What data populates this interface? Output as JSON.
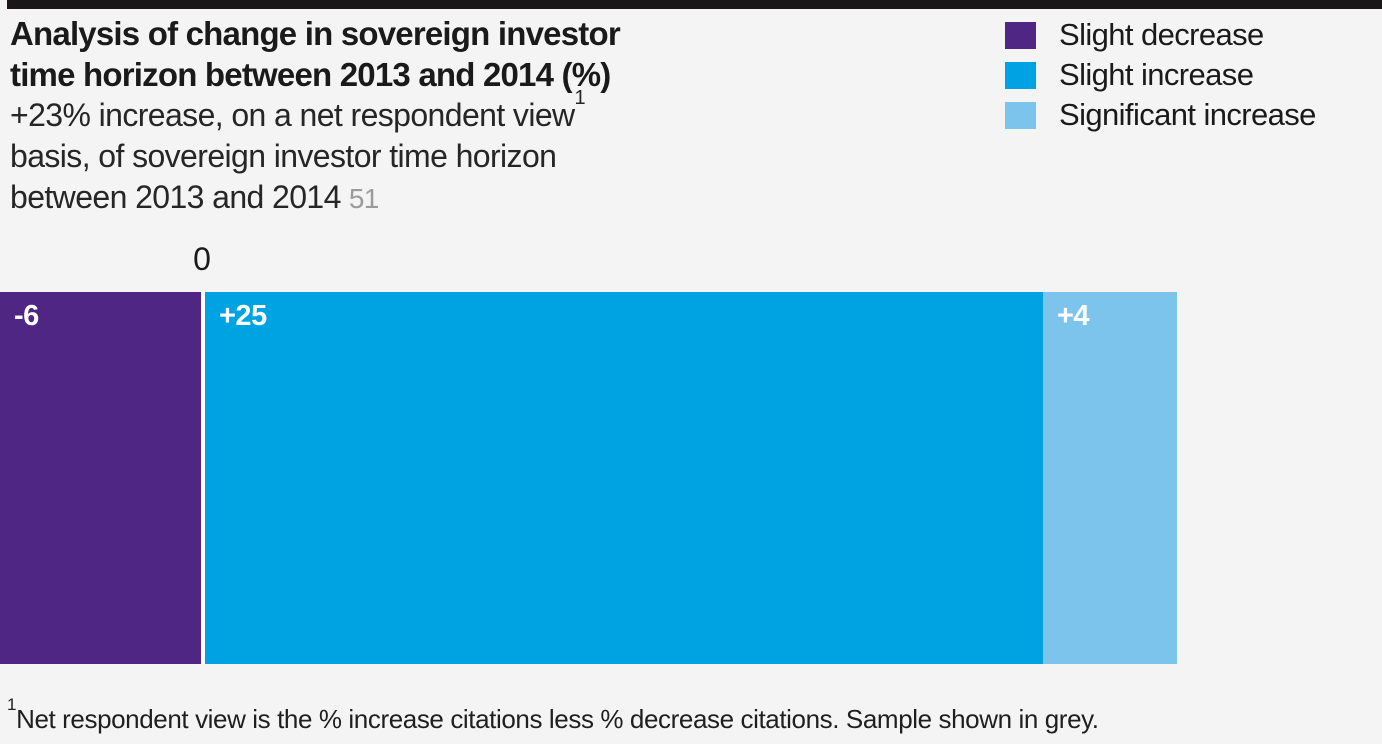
{
  "header": {
    "title_line1": "Analysis of change in sovereign investor",
    "title_line2": "time horizon between 2013 and 2014 (%)",
    "subtitle_line1": "+23% increase, on a net respondent view",
    "footnote_marker": "1",
    "subtitle_line2": "basis, of sovereign investor time horizon",
    "subtitle_line3": "between 2013 and 2014",
    "sample_size": "51"
  },
  "legend": {
    "items": [
      {
        "label": "Slight decrease",
        "color": "#4f2683"
      },
      {
        "label": "Slight increase",
        "color": "#00a3e1"
      },
      {
        "label": "Significant increase",
        "color": "#7dc4ec"
      }
    ]
  },
  "chart": {
    "zero_label": "0",
    "bars": [
      {
        "name": "Slight decrease",
        "label": "-6",
        "value": -6,
        "color": "#4f2683"
      },
      {
        "name": "Slight increase",
        "label": "+25",
        "value": 25,
        "color": "#00a3e1"
      },
      {
        "name": "Significant increase",
        "label": "+4",
        "value": 4,
        "color": "#7dc4ec"
      }
    ]
  },
  "footnote": {
    "marker": "1",
    "text": "Net respondent view is the % increase citations less % decrease citations. Sample shown in grey."
  },
  "chart_data": {
    "type": "bar",
    "orientation": "horizontal_diverging",
    "categories": [
      "Slight decrease",
      "Slight increase",
      "Significant increase"
    ],
    "values": [
      -6,
      25,
      4
    ],
    "data_labels": [
      "-6",
      "+25",
      "+4"
    ],
    "title": "Analysis of change in sovereign investor time horizon between 2013 and 2014 (%)",
    "subtitle": "+23% increase, on a net respondent view basis, of sovereign investor time horizon between 2013 and 2014",
    "net_change_pct": 23,
    "sample_size": 51,
    "zero_tick_label": "0",
    "legend_position": "top-right",
    "legend_entries": [
      "Slight decrease",
      "Slight increase",
      "Significant increase"
    ],
    "colors": [
      "#4f2683",
      "#00a3e1",
      "#7dc4ec"
    ],
    "background_color": "#f5f4f4",
    "grid": false
  }
}
